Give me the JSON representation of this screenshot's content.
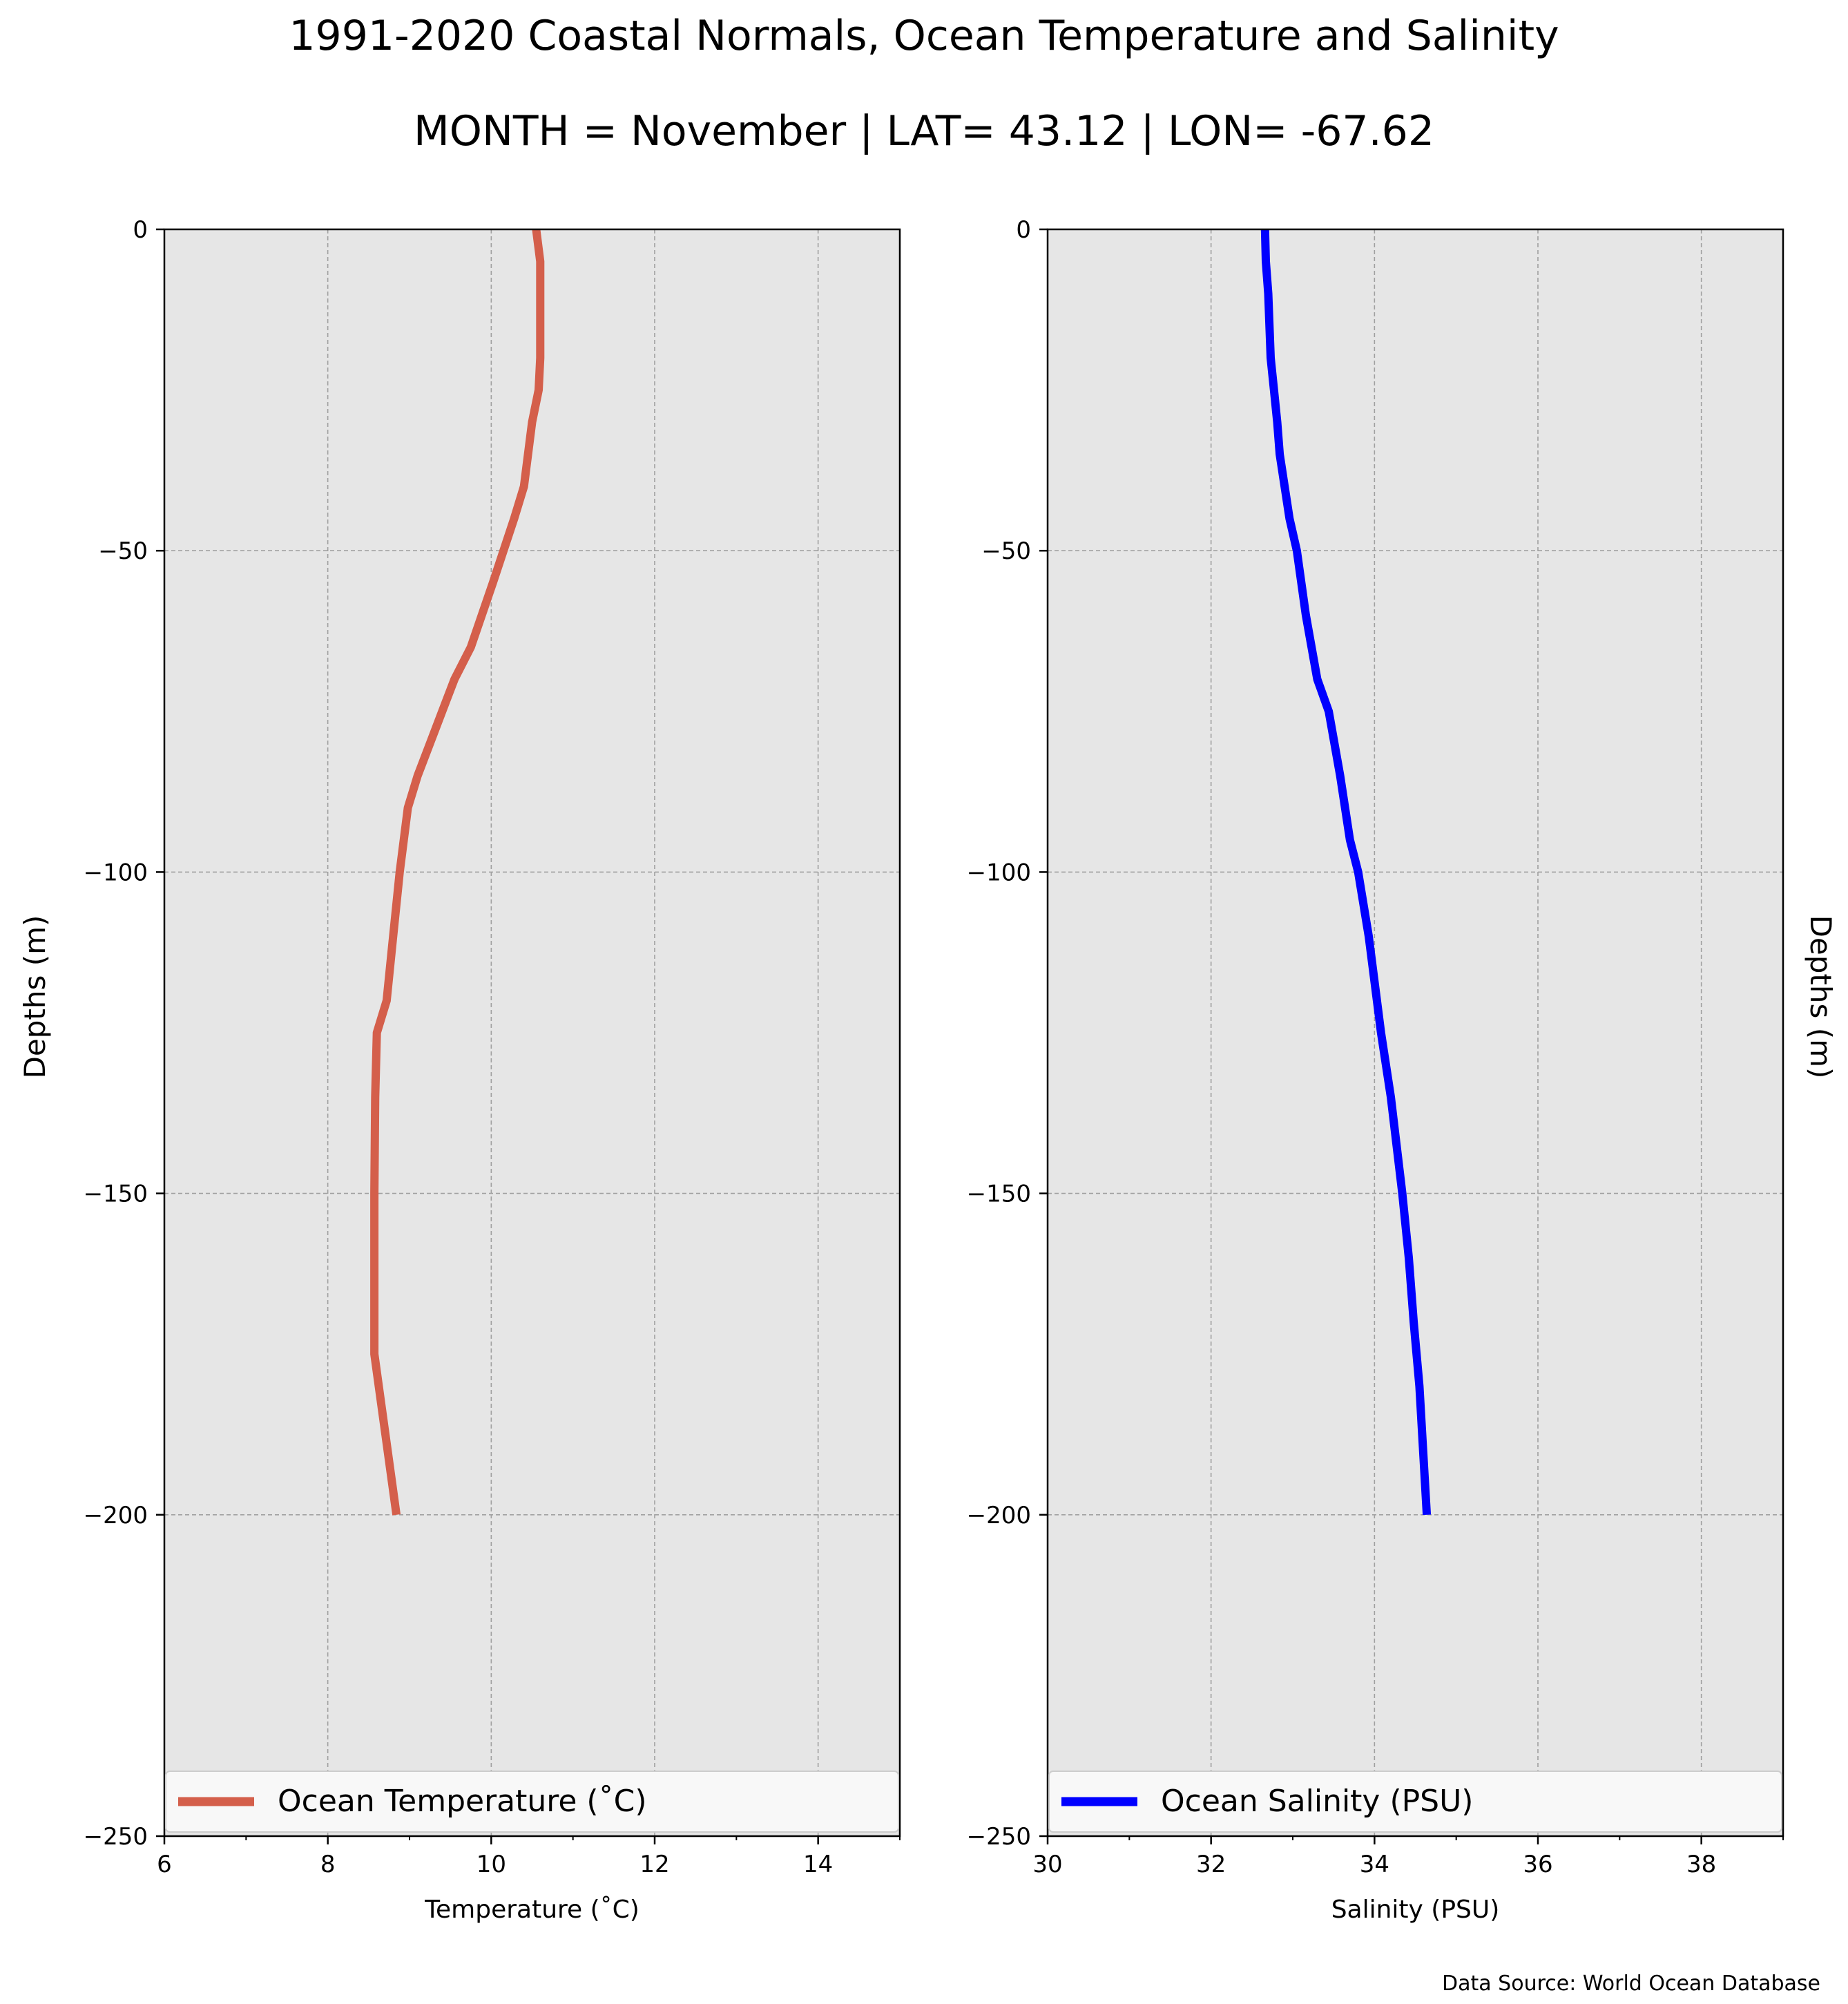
{
  "title": "1991-2020 Coastal Normals, Ocean Temperature and Salinity",
  "subtitle": "MONTH = November | LAT= 43.12 | LON= -67.62",
  "source_note": "Data Source: World Ocean Database",
  "left_ylabel": "Depths (m)",
  "right_ylabel": "Depths (m)",
  "colors": {
    "plot_background": "#e6e6e6",
    "grid": "#a0a0a0",
    "temperature_line": "#d45f4b",
    "salinity_line": "#0000ff",
    "legend_background": "#f8f8f8"
  },
  "chart_data": [
    {
      "type": "line",
      "xlabel": "Temperature (˚C)",
      "ylabel": "Depths (m)",
      "xlim": [
        6,
        15
      ],
      "ylim": [
        -250,
        0
      ],
      "xticks": [
        6,
        8,
        10,
        12,
        14
      ],
      "xtick_labels": [
        "6",
        "8",
        "10",
        "12",
        "14"
      ],
      "yticks": [
        0,
        -50,
        -100,
        -150,
        -200,
        -250
      ],
      "ytick_labels": [
        "0",
        "−50",
        "−100",
        "−150",
        "−200",
        "−250"
      ],
      "grid": true,
      "legend_position": "lower center",
      "series": [
        {
          "name": "Ocean Temperature (˚C)",
          "color": "#d45f4b",
          "x": [
            10.55,
            10.6,
            10.6,
            10.6,
            10.6,
            10.58,
            10.5,
            10.4,
            10.28,
            10.02,
            9.75,
            9.55,
            9.4,
            9.25,
            9.1,
            8.98,
            8.88,
            8.8,
            8.72,
            8.6,
            8.58,
            8.57,
            8.57,
            8.57,
            8.57,
            8.84
          ],
          "y": [
            0,
            -5,
            -10,
            -15,
            -20,
            -25,
            -30,
            -40,
            -45,
            -55,
            -65,
            -70,
            -75,
            -80,
            -85,
            -90,
            -100,
            -110,
            -120,
            -125,
            -135,
            -150,
            -160,
            -170,
            -175,
            -200
          ]
        }
      ]
    },
    {
      "type": "line",
      "xlabel": "Salinity (PSU)",
      "ylabel": "Depths (m)",
      "xlim": [
        30,
        39
      ],
      "ylim": [
        -250,
        0
      ],
      "xticks": [
        30,
        32,
        34,
        36,
        38
      ],
      "xtick_labels": [
        "30",
        "32",
        "34",
        "36",
        "38"
      ],
      "yticks": [
        0,
        -50,
        -100,
        -150,
        -200,
        -250
      ],
      "ytick_labels": [
        "0",
        "−50",
        "−100",
        "−150",
        "−200",
        "−250"
      ],
      "grid": true,
      "legend_position": "lower center",
      "series": [
        {
          "name": "Ocean Salinity (PSU)",
          "color": "#0000ff",
          "x": [
            32.66,
            32.67,
            32.7,
            32.73,
            32.77,
            32.81,
            32.84,
            32.9,
            32.96,
            33.05,
            33.16,
            33.3,
            33.44,
            33.58,
            33.7,
            33.8,
            33.93,
            34.08,
            34.2,
            34.34,
            34.42,
            34.48,
            34.55,
            34.64
          ],
          "y": [
            0,
            -5,
            -10,
            -20,
            -25,
            -30,
            -35,
            -40,
            -45,
            -50,
            -60,
            -70,
            -75,
            -85,
            -95,
            -100,
            -110,
            -125,
            -135,
            -150,
            -160,
            -170,
            -180,
            -200
          ]
        }
      ]
    }
  ]
}
